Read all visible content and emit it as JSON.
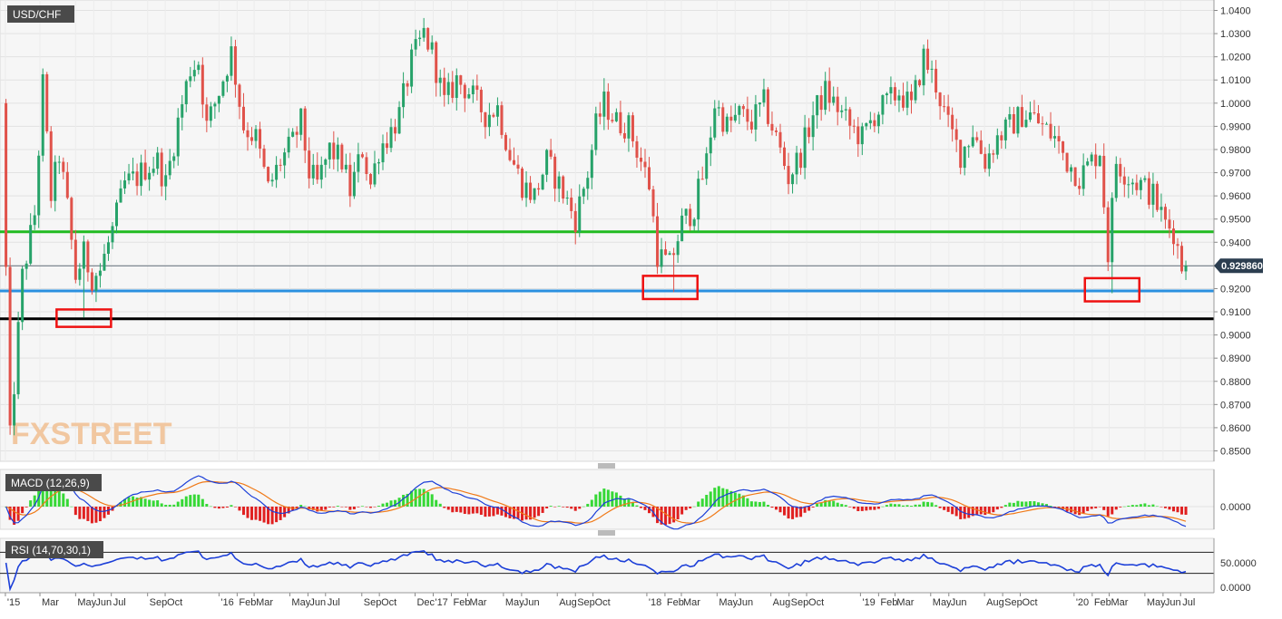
{
  "chart_data": [
    {
      "type": "candlestick",
      "title": "USD/CHF",
      "watermark": "FXSTREET",
      "y_ticks": [
        "1.0400",
        "1.0300",
        "1.0200",
        "1.0100",
        "1.0000",
        "0.9900",
        "0.9800",
        "0.9700",
        "0.9600",
        "0.9500",
        "0.9400",
        "0.9300",
        "0.9200",
        "0.9100",
        "0.9000",
        "0.8900",
        "0.8800",
        "0.8700",
        "0.8600",
        "0.8500"
      ],
      "ylim": [
        0.8455,
        1.0445
      ],
      "last_price": 0.92986,
      "last_price_label": "0.929860",
      "horizontal_lines": [
        {
          "value": 0.9445,
          "color": "#22bb22"
        },
        {
          "value": 0.919,
          "color": "#2a90e0"
        },
        {
          "value": 0.907,
          "color": "#000000"
        }
      ],
      "highlight_boxes": [
        {
          "date": "2015-05-15",
          "low": 0.9035,
          "high": 0.911
        },
        {
          "date": "2018-02-10",
          "low": 0.9155,
          "high": 0.9255
        },
        {
          "date": "2020-03-06",
          "low": 0.9145,
          "high": 0.9245
        }
      ],
      "x_ticks": [
        "'15",
        "Mar",
        "May",
        "Jun",
        "Jul",
        "Sep",
        "Oct",
        "'16",
        "Feb",
        "Mar",
        "May",
        "Jun",
        "Jul",
        "Sep",
        "Oct",
        "Dec",
        "'17",
        "Feb",
        "Mar",
        "May",
        "Jun",
        "Aug",
        "Sep",
        "Oct",
        "'18",
        "Feb",
        "Mar",
        "May",
        "Jun",
        "Aug",
        "Sep",
        "Oct",
        "'19",
        "Feb",
        "Mar",
        "May",
        "Jun",
        "Aug",
        "Sep",
        "Oct",
        "'20",
        "Feb",
        "Mar",
        "May",
        "Jun",
        "Jul"
      ],
      "bull_color": "#26a269",
      "bear_color": "#e0524a",
      "anchors": [
        [
          "2015-01-02",
          1.0
        ],
        [
          "2015-01-16",
          0.855
        ],
        [
          "2015-02-06",
          0.925
        ],
        [
          "2015-02-27",
          0.952
        ],
        [
          "2015-03-13",
          1.008
        ],
        [
          "2015-03-27",
          0.96
        ],
        [
          "2015-04-10",
          0.978
        ],
        [
          "2015-04-24",
          0.955
        ],
        [
          "2015-05-08",
          0.925
        ],
        [
          "2015-05-22",
          0.935
        ],
        [
          "2015-06-05",
          0.925
        ],
        [
          "2015-06-19",
          0.928
        ],
        [
          "2015-07-10",
          0.945
        ],
        [
          "2015-07-31",
          0.965
        ],
        [
          "2015-08-21",
          0.968
        ],
        [
          "2015-09-04",
          0.972
        ],
        [
          "2015-09-25",
          0.975
        ],
        [
          "2015-10-09",
          0.965
        ],
        [
          "2015-10-30",
          0.992
        ],
        [
          "2015-11-20",
          1.015
        ],
        [
          "2015-12-04",
          1.018
        ],
        [
          "2015-12-18",
          0.99
        ],
        [
          "2016-01-08",
          1.005
        ],
        [
          "2016-01-29",
          1.022
        ],
        [
          "2016-02-19",
          0.99
        ],
        [
          "2016-03-11",
          0.985
        ],
        [
          "2016-04-01",
          0.963
        ],
        [
          "2016-04-22",
          0.975
        ],
        [
          "2016-05-13",
          0.983
        ],
        [
          "2016-05-27",
          0.992
        ],
        [
          "2016-06-10",
          0.97
        ],
        [
          "2016-06-24",
          0.965
        ],
        [
          "2016-07-15",
          0.98
        ],
        [
          "2016-08-05",
          0.975
        ],
        [
          "2016-08-19",
          0.962
        ],
        [
          "2016-09-09",
          0.98
        ],
        [
          "2016-09-23",
          0.965
        ],
        [
          "2016-10-07",
          0.98
        ],
        [
          "2016-10-28",
          0.988
        ],
        [
          "2016-11-11",
          0.995
        ],
        [
          "2016-12-02",
          1.018
        ],
        [
          "2016-12-23",
          1.03
        ],
        [
          "2017-01-06",
          1.022
        ],
        [
          "2017-01-27",
          1.0
        ],
        [
          "2017-02-17",
          1.01
        ],
        [
          "2017-03-10",
          1.005
        ],
        [
          "2017-04-07",
          0.995
        ],
        [
          "2017-04-28",
          0.998
        ],
        [
          "2017-05-19",
          0.978
        ],
        [
          "2017-06-09",
          0.965
        ],
        [
          "2017-06-30",
          0.96
        ],
        [
          "2017-07-21",
          0.975
        ],
        [
          "2017-08-11",
          0.965
        ],
        [
          "2017-09-08",
          0.95
        ],
        [
          "2017-09-29",
          0.97
        ],
        [
          "2017-10-13",
          0.99
        ],
        [
          "2017-10-27",
          1.0
        ],
        [
          "2017-11-17",
          0.992
        ],
        [
          "2017-12-08",
          0.99
        ],
        [
          "2017-12-29",
          0.975
        ],
        [
          "2018-01-12",
          0.965
        ],
        [
          "2018-01-26",
          0.935
        ],
        [
          "2018-02-16",
          0.93
        ],
        [
          "2018-03-09",
          0.948
        ],
        [
          "2018-03-30",
          0.955
        ],
        [
          "2018-04-20",
          0.975
        ],
        [
          "2018-05-04",
          1.0
        ],
        [
          "2018-05-25",
          0.99
        ],
        [
          "2018-06-15",
          0.995
        ],
        [
          "2018-07-06",
          0.992
        ],
        [
          "2018-07-27",
          1.0
        ],
        [
          "2018-08-17",
          0.985
        ],
        [
          "2018-09-07",
          0.968
        ],
        [
          "2018-09-28",
          0.978
        ],
        [
          "2018-10-19",
          0.995
        ],
        [
          "2018-11-09",
          1.005
        ],
        [
          "2018-11-30",
          0.998
        ],
        [
          "2018-12-21",
          0.99
        ],
        [
          "2019-01-11",
          0.985
        ],
        [
          "2019-02-01",
          0.995
        ],
        [
          "2019-02-22",
          1.0
        ],
        [
          "2019-03-15",
          1.005
        ],
        [
          "2019-04-05",
          0.998
        ],
        [
          "2019-04-26",
          1.02
        ],
        [
          "2019-05-17",
          1.008
        ],
        [
          "2019-06-07",
          0.99
        ],
        [
          "2019-06-28",
          0.978
        ],
        [
          "2019-07-19",
          0.988
        ],
        [
          "2019-08-09",
          0.975
        ],
        [
          "2019-08-30",
          0.985
        ],
        [
          "2019-09-20",
          0.99
        ],
        [
          "2019-10-11",
          0.995
        ],
        [
          "2019-10-25",
          0.995
        ],
        [
          "2019-11-15",
          0.99
        ],
        [
          "2019-12-06",
          0.985
        ],
        [
          "2019-12-27",
          0.975
        ],
        [
          "2020-01-17",
          0.968
        ],
        [
          "2020-02-07",
          0.975
        ],
        [
          "2020-02-21",
          0.98
        ],
        [
          "2020-03-06",
          0.935
        ],
        [
          "2020-03-20",
          0.975
        ],
        [
          "2020-04-10",
          0.968
        ],
        [
          "2020-05-01",
          0.965
        ],
        [
          "2020-05-22",
          0.96
        ],
        [
          "2020-06-12",
          0.948
        ],
        [
          "2020-06-26",
          0.945
        ],
        [
          "2020-07-10",
          0.93
        ]
      ],
      "spikes": [
        [
          "2015-05-15",
          0.9075
        ],
        [
          "2018-02-16",
          0.9185
        ],
        [
          "2020-03-06",
          0.918
        ]
      ]
    },
    {
      "type": "line",
      "title": "MACD (12,26,9)",
      "y_ticks": [
        "0.0000"
      ],
      "macd_color": "#1c3fd8",
      "signal_color": "#f07a18",
      "histogram_up_color": "#36d836",
      "histogram_down_color": "#e02020"
    },
    {
      "type": "line",
      "title": "RSI (14,70,30,1)",
      "y_ticks": [
        "50.0000",
        "0.0000"
      ],
      "levels": [
        70,
        30
      ],
      "line_color": "#1c3fd8"
    }
  ]
}
